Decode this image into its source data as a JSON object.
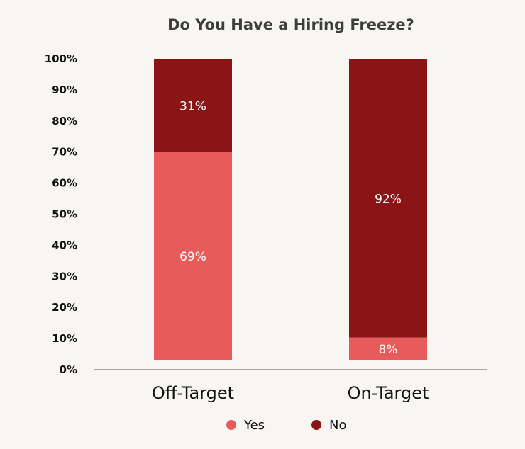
{
  "chart_data": {
    "type": "bar",
    "stacked": true,
    "title": "Do You Have a Hiring Freeze?",
    "categories": [
      "Off-Target",
      "On-Target"
    ],
    "series": [
      {
        "name": "Yes",
        "values": [
          69,
          8
        ],
        "labels": [
          "69%",
          "8%"
        ],
        "color": "#e85b5b"
      },
      {
        "name": "No",
        "values": [
          31,
          92
        ],
        "labels": [
          "31%",
          "92%"
        ],
        "color": "#8b1416"
      }
    ],
    "ylim": [
      0,
      100
    ],
    "yticks": [
      "0%",
      "10%",
      "20%",
      "30%",
      "40%",
      "50%",
      "60%",
      "70%",
      "80%",
      "90%",
      "100%"
    ],
    "xlabel": "",
    "ylabel": "",
    "grid": false,
    "legend": {
      "position": "bottom",
      "items": [
        "Yes",
        "No"
      ]
    }
  }
}
